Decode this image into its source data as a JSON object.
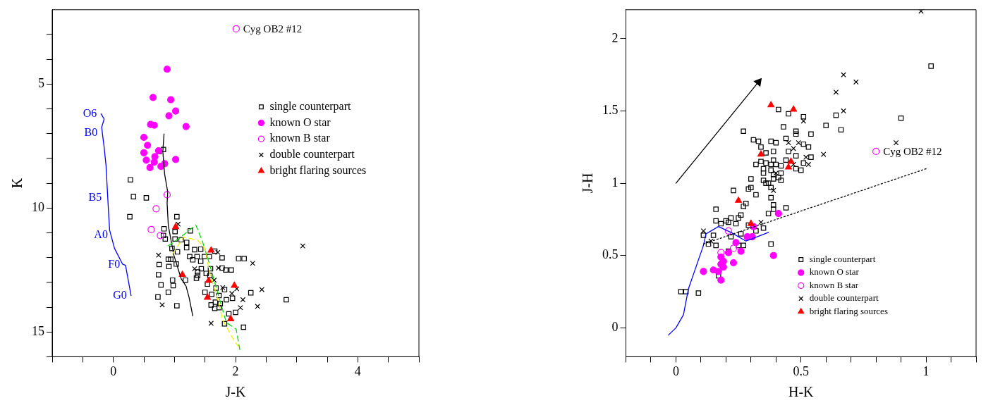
{
  "chart_data": [
    {
      "type": "scatter",
      "xlabel": "J-K",
      "ylabel": "K",
      "xlim": [
        -1,
        5
      ],
      "ylim": [
        16,
        2
      ],
      "xticks": [
        {
          "value": -1,
          "label": null
        },
        {
          "value": -0.5,
          "label": null
        },
        0,
        {
          "value": 0.5,
          "label": null
        },
        {
          "value": 1,
          "label": null
        },
        {
          "value": 1.5,
          "label": null
        },
        2,
        {
          "value": 2.5,
          "label": null
        },
        {
          "value": 3,
          "label": null
        },
        {
          "value": 3.5,
          "label": null
        },
        4,
        {
          "value": 4.5,
          "label": null
        },
        {
          "value": 5,
          "label": null
        }
      ],
      "yticks": [
        {
          "value": 3,
          "label": null
        },
        {
          "value": 4,
          "label": null
        },
        5,
        {
          "value": 6,
          "label": null
        },
        {
          "value": 7,
          "label": null
        },
        {
          "value": 8,
          "label": null
        },
        {
          "value": 9,
          "label": null
        },
        10,
        {
          "value": 11,
          "label": null
        },
        {
          "value": 12,
          "label": null
        },
        {
          "value": 13,
          "label": null
        },
        {
          "value": 14,
          "label": null
        },
        15,
        {
          "value": 16,
          "label": null
        }
      ],
      "legend": "top right",
      "series": [
        {
          "name": "single counterpart",
          "color": "#000000",
          "marker": "square",
          "x": [
            0.82,
            0.75,
            0.28,
            0.33,
            0.54,
            0.27,
            1.04,
            0.83,
            1.01,
            1.26,
            0.82,
            0.85,
            1.01,
            1.11,
            1.2,
            0.96,
            1.05,
            1.2,
            1.33,
            1.43,
            1.66,
            1.78,
            2.05,
            2.14,
            1.25,
            1.37,
            1.49,
            1.57,
            1.3,
            1.43,
            0.9,
            0.94,
            1.03,
            0.75,
            0.91,
            1.44,
            1.59,
            1.78,
            1.84,
            1.93,
            1.38,
            1.52,
            0.74,
            1.38,
            1.58,
            1.36,
            0.97,
            1.18,
            1.54,
            0.78,
            0.98,
            1.68,
            1.82,
            0.9,
            1.5,
            1.61,
            1.73,
            1.85,
            1.95,
            2.25,
            0.73,
            1.67,
            1.75,
            1.6,
            1.04,
            1.66,
            1.73,
            1.89,
            2.0,
            1.82,
            2.13,
            2.83
          ],
          "values": [
            7.64,
            7.72,
            8.86,
            9.54,
            9.59,
            10.35,
            10.35,
            10.84,
            10.95,
            10.92,
            11.11,
            11.25,
            11.25,
            11.28,
            11.39,
            11.63,
            11.77,
            11.6,
            11.68,
            11.66,
            11.74,
            12.01,
            12.04,
            12.04,
            11.96,
            11.96,
            11.96,
            11.96,
            12.09,
            12.15,
            12.07,
            12.07,
            12.26,
            12.28,
            12.36,
            12.45,
            12.45,
            12.42,
            12.5,
            12.5,
            12.58,
            12.64,
            12.69,
            12.72,
            12.72,
            12.83,
            12.91,
            12.91,
            13.07,
            13.1,
            13.13,
            13.23,
            13.29,
            13.4,
            13.4,
            13.48,
            13.53,
            13.7,
            13.64,
            13.42,
            13.59,
            13.8,
            13.86,
            13.91,
            13.94,
            14.05,
            14.02,
            14.27,
            14.21,
            14.67,
            14.81,
            13.7
          ]
        },
        {
          "name": "known O star",
          "color": "#ff00ff",
          "marker": "circle",
          "x": [
            0.88,
            0.65,
            0.94,
            1.02,
            0.91,
            0.61,
            0.67,
            1.19,
            0.5,
            0.56,
            0.5,
            0.74,
            0.54,
            0.68,
            0.67,
            0.6,
            0.78,
            0.84,
            1.02
          ],
          "values": [
            4.4,
            5.54,
            5.63,
            6.09,
            6.28,
            6.63,
            6.66,
            6.71,
            7.15,
            7.47,
            7.77,
            7.69,
            8.07,
            7.93,
            8.15,
            8.37,
            8.32,
            8.21,
            8.04
          ]
        },
        {
          "name": "known B star",
          "color": "#ff00ff",
          "marker": "circle",
          "x": [
            2.01,
            0.88,
            0.7,
            0.62,
            0.77
          ],
          "values": [
            2.77,
            9.46,
            10.03,
            10.87,
            11.11
          ]
        },
        {
          "name": "double counterpart",
          "color": "#000000",
          "marker": "cross",
          "x": [
            1.06,
            0.74,
            1.71,
            2.28,
            1.33,
            1.72,
            1.65,
            1.79,
            2.02,
            2.43,
            1.94,
            2.12,
            0.8,
            2.08,
            2.36,
            1.6,
            3.1
          ],
          "values": [
            10.65,
            11.9,
            11.79,
            12.23,
            12.45,
            12.42,
            12.91,
            13.21,
            13.26,
            13.29,
            13.45,
            13.7,
            13.91,
            14.02,
            13.97,
            14.65,
            11.53
          ]
        },
        {
          "name": "bright flaring sources",
          "color": "#ff0000",
          "marker": "triangle",
          "x": [
            1.02,
            1.6,
            1.13,
            1.56,
            1.98,
            1.54,
            1.92
          ],
          "values": [
            10.76,
            11.71,
            12.69,
            12.93,
            13.13,
            13.61,
            14.48
          ]
        },
        {
          "type": "line",
          "color": "#0000ff",
          "line_style": "solid",
          "x": [
            -0.2,
            -0.15,
            -0.19,
            -0.18,
            -0.15,
            -0.12,
            -0.08,
            -0.06,
            0.02,
            0.15,
            0.2,
            0.29
          ],
          "values": [
            6.2,
            6.41,
            6.74,
            6.96,
            7.55,
            8.26,
            10.08,
            10.9,
            11.63,
            12.26,
            12.31,
            13.53
          ]
        },
        {
          "type": "line",
          "color": "#000000",
          "line_style": "solid",
          "x": [
            0.83,
            0.81,
            0.84,
            0.89,
            0.88,
            0.9,
            0.99,
            1.11,
            1.19,
            1.24,
            1.3
          ],
          "values": [
            7.01,
            7.72,
            8.64,
            9.35,
            9.81,
            10.71,
            11.9,
            12.85,
            13.15,
            13.61,
            14.35
          ]
        },
        {
          "type": "line",
          "color": "#00dd00",
          "line_style": "dashed",
          "x": [
            0.9,
            1.08,
            1.35,
            1.46,
            1.58,
            1.73,
            1.85,
            2.01,
            2.07
          ],
          "values": [
            11.52,
            11.22,
            10.68,
            11.36,
            12.31,
            13.61,
            14.62,
            14.89,
            15.71
          ]
        },
        {
          "type": "line",
          "color": "#eeee00",
          "line_style": "dashed",
          "x": [
            0.97,
            1.15,
            1.38,
            1.5,
            1.58,
            1.7,
            1.79,
            1.95,
            2.05
          ],
          "values": [
            11.85,
            11.17,
            11.3,
            11.63,
            12.66,
            13.61,
            14.51,
            15.24,
            15.6
          ]
        }
      ],
      "annotations": [
        {
          "text": "Cyg OB2 #12",
          "x": 2.01,
          "y": 2.77
        },
        {
          "text": "O6",
          "x": -0.2,
          "y": 6.2
        },
        {
          "text": "B0",
          "x": -0.19,
          "y": 6.96
        },
        {
          "text": "B5",
          "x": -0.12,
          "y": 9.59
        },
        {
          "text": "A0",
          "x": -0.02,
          "y": 11.09
        },
        {
          "text": "F0",
          "x": 0.18,
          "y": 12.28
        },
        {
          "text": "G0",
          "x": 0.29,
          "y": 13.53
        }
      ]
    },
    {
      "type": "scatter",
      "xlabel": "H-K",
      "ylabel": "J-H",
      "xlim": [
        -0.2,
        1.2
      ],
      "ylim": [
        -0.2,
        2.2
      ],
      "xticks": [
        {
          "value": -0.2,
          "label": null
        },
        {
          "value": -0.1,
          "label": null
        },
        0,
        {
          "value": 0.1,
          "label": null
        },
        {
          "value": 0.2,
          "label": null
        },
        {
          "value": 0.3,
          "label": null
        },
        {
          "value": 0.4,
          "label": null
        },
        0.5,
        {
          "value": 0.6,
          "label": null
        },
        {
          "value": 0.7,
          "label": null
        },
        {
          "value": 0.8,
          "label": null
        },
        {
          "value": 0.9,
          "label": null
        },
        1,
        {
          "value": 1.1,
          "label": null
        },
        {
          "value": 1.2,
          "label": null
        }
      ],
      "yticks": [
        0,
        0.5,
        1,
        1.5,
        2
      ],
      "legend": "bottom right",
      "series": [
        {
          "name": "single counterpart",
          "color": "#000000",
          "marker": "square",
          "x": [
            1.02,
            0.9,
            0.41,
            0.45,
            0.51,
            0.43,
            0.48,
            0.48,
            0.54,
            0.27,
            0.31,
            0.33,
            0.38,
            0.4,
            0.44,
            0.51,
            0.53,
            0.34,
            0.39,
            0.36,
            0.45,
            0.48,
            0.54,
            0.39,
            0.34,
            0.32,
            0.36,
            0.38,
            0.4,
            0.42,
            0.44,
            0.51,
            0.5,
            0.48,
            0.35,
            0.38,
            0.35,
            0.39,
            0.42,
            0.39,
            0.41,
            0.42,
            0.35,
            0.37,
            0.36,
            0.3,
            0.38,
            0.3,
            0.29,
            0.23,
            0.32,
            0.38,
            0.28,
            0.27,
            0.39,
            0.39,
            0.44,
            0.37,
            0.16,
            0.26,
            0.25,
            0.16,
            0.18,
            0.2,
            0.21,
            0.22,
            0.24,
            0.11,
            0.15,
            0.22,
            0.26,
            0.16,
            0.13,
            0.25,
            0.27,
            0.21,
            0.32,
            0.35,
            0.29,
            0.38,
            0.17,
            0.02,
            0.04,
            0.09,
            0.64,
            0.66,
            0.6
          ],
          "values": [
            1.81,
            1.45,
            1.51,
            1.48,
            1.46,
            1.39,
            1.36,
            1.34,
            1.34,
            1.36,
            1.3,
            1.29,
            1.29,
            1.28,
            1.31,
            1.27,
            1.25,
            1.25,
            1.22,
            1.21,
            1.22,
            1.19,
            1.18,
            1.16,
            1.15,
            1.13,
            1.14,
            1.13,
            1.13,
            1.12,
            1.16,
            1.14,
            1.09,
            1.1,
            1.1,
            1.09,
            1.07,
            1.06,
            1.07,
            1.03,
            1.04,
            1.02,
            1.02,
            1.0,
            1.0,
            1.03,
            0.97,
            0.97,
            0.96,
            0.95,
            0.92,
            0.9,
            0.86,
            0.84,
            0.85,
            0.82,
            0.83,
            0.79,
            0.82,
            0.78,
            0.76,
            0.74,
            0.72,
            0.74,
            0.73,
            0.76,
            0.72,
            0.64,
            0.64,
            0.63,
            0.65,
            0.57,
            0.58,
            0.57,
            0.57,
            0.53,
            0.67,
            0.69,
            0.71,
            0.58,
            0.36,
            0.25,
            0.25,
            0.24,
            1.47,
            1.37,
            1.4
          ]
        },
        {
          "name": "known O star",
          "color": "#ff00ff",
          "marker": "circle",
          "x": [
            0.41,
            0.31,
            0.285,
            0.305,
            0.24,
            0.21,
            0.26,
            0.18,
            0.19,
            0.18,
            0.23,
            0.19,
            0.11,
            0.15,
            0.17,
            0.18,
            0.39
          ],
          "values": [
            0.79,
            0.7,
            0.63,
            0.63,
            0.59,
            0.52,
            0.53,
            0.49,
            0.46,
            0.44,
            0.45,
            0.42,
            0.39,
            0.4,
            0.39,
            0.33,
            0.5
          ]
        },
        {
          "name": "known B star",
          "color": "#ff00ff",
          "marker": "circle",
          "x": [
            0.21,
            0.18,
            0.23,
            0.8
          ],
          "values": [
            0.67,
            0.52,
            0.55,
            1.22
          ]
        },
        {
          "name": "double counterpart",
          "color": "#000000",
          "marker": "cross",
          "x": [
            0.98,
            0.67,
            0.72,
            0.64,
            0.67,
            0.59,
            0.88,
            0.51,
            0.45,
            0.49,
            0.47,
            0.52,
            0.53,
            0.47,
            0.39,
            0.4,
            0.11,
            0.14,
            0.34
          ],
          "values": [
            2.19,
            1.75,
            1.7,
            1.63,
            1.5,
            1.2,
            1.28,
            1.43,
            1.28,
            1.28,
            1.24,
            1.18,
            1.13,
            1.13,
            0.95,
            1.07,
            0.67,
            0.6,
            0.73
          ]
        },
        {
          "name": "bright flaring sources",
          "color": "#ff0000",
          "marker": "triangle",
          "x": [
            0.38,
            0.47,
            0.34,
            0.46,
            0.45,
            0.25,
            0.3
          ],
          "values": [
            1.54,
            1.51,
            1.2,
            1.15,
            1.11,
            0.88,
            0.72
          ]
        },
        {
          "type": "line",
          "color": "#0000ff",
          "line_style": "solid",
          "x": [
            -0.03,
            0.0,
            0.03,
            0.05,
            0.07,
            0.09,
            0.11,
            0.12,
            0.14,
            0.17,
            0.22,
            0.28,
            0.31,
            0.37
          ],
          "values": [
            -0.05,
            0.0,
            0.09,
            0.27,
            0.37,
            0.47,
            0.57,
            0.65,
            0.67,
            0.7,
            0.66,
            0.6,
            0.62,
            0.66
          ]
        },
        {
          "type": "line",
          "color": "#000000",
          "line_style": "dotted",
          "x": [
            0.11,
            1.0
          ],
          "values": [
            0.58,
            1.1
          ]
        },
        {
          "type": "line",
          "color": "#000000",
          "line_style": "solid",
          "x": [
            0.0,
            0.33
          ],
          "values": [
            1.0,
            1.7
          ]
        }
      ],
      "annotations": [
        {
          "text": "Cyg OB2 #12",
          "x": 0.8,
          "y": 1.22
        }
      ]
    }
  ]
}
